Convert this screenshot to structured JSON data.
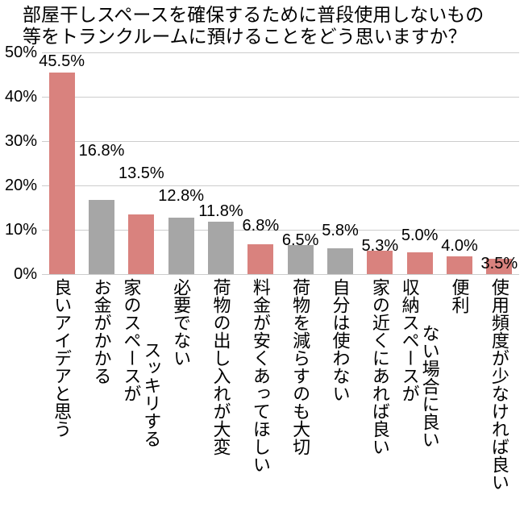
{
  "chart_data": {
    "type": "bar",
    "title": "部屋干しスペースを確保するために普段使用しないもの等をトランクルームに預けることをどう思いますか？",
    "title_lines": [
      "部屋干しスペースを確保するために普段使用しないもの",
      "等をトランクルームに預けることをどう思いますか？"
    ],
    "xlabel": "",
    "ylabel": "",
    "ylim": [
      0,
      50
    ],
    "y_ticks": [
      "0%",
      "10%",
      "20%",
      "30%",
      "40%",
      "50%"
    ],
    "grid": true,
    "legend": "none",
    "colors": {
      "pink": "#d9827e",
      "gray": "#a6a6a6"
    },
    "bars": [
      {
        "category": "良いアイデアと思う",
        "label_lines": [
          "良いアイデアと思う"
        ],
        "value": 45.5,
        "display": "45.5%",
        "color": "pink",
        "label_dy": 2
      },
      {
        "category": "お金がかかる",
        "label_lines": [
          "お金がかかる"
        ],
        "value": 16.8,
        "display": "16.8%",
        "color": "gray",
        "label_dy": 49
      },
      {
        "category": "家のスペースがスッキリする",
        "label_lines": [
          "家のスペースが",
          "スッキリする"
        ],
        "value": 13.5,
        "display": "13.5%",
        "color": "pink",
        "label_dy": 39,
        "line2_offset": 78
      },
      {
        "category": "必要でない",
        "label_lines": [
          "必要でない"
        ],
        "value": 12.8,
        "display": "12.8%",
        "color": "gray",
        "label_dy": 15
      },
      {
        "category": "荷物の出し入れが大変",
        "label_lines": [
          "荷物の出し入れが大変"
        ],
        "value": 11.8,
        "display": "11.8%",
        "color": "gray",
        "label_dy": 1
      },
      {
        "category": "料金が安くあってほしい",
        "label_lines": [
          "料金が安くあってほしい"
        ],
        "value": 6.8,
        "display": "6.8%",
        "color": "pink",
        "label_dy": 11
      },
      {
        "category": "荷物を減らすのも大切",
        "label_lines": [
          "荷物を減らすのも大切"
        ],
        "value": 6.5,
        "display": "6.5%",
        "color": "gray",
        "label_dy": -6
      },
      {
        "category": "自分は使わない",
        "label_lines": [
          "自分は使わない"
        ],
        "value": 5.8,
        "display": "5.8%",
        "color": "gray",
        "label_dy": 10
      },
      {
        "category": "家の近くにあれば良い",
        "label_lines": [
          "家の近くにあれば良い"
        ],
        "value": 5.3,
        "display": "5.3%",
        "color": "pink",
        "label_dy": -6
      },
      {
        "category": "収納スペースがない場合に良い",
        "label_lines": [
          "収納スペースが",
          "ない場合に良い"
        ],
        "value": 5.0,
        "display": "5.0%",
        "color": "pink",
        "label_dy": 9,
        "line2_offset": 57
      },
      {
        "category": "便利",
        "label_lines": [
          "便利"
        ],
        "value": 4.0,
        "display": "4.0%",
        "color": "pink",
        "label_dy": 1
      },
      {
        "category": "使用頻度が少なければ良い",
        "label_lines": [
          "使用頻度が少なければ良い"
        ],
        "value": 3.5,
        "display": "3.5%",
        "color": "pink",
        "label_dy": -18
      }
    ]
  }
}
